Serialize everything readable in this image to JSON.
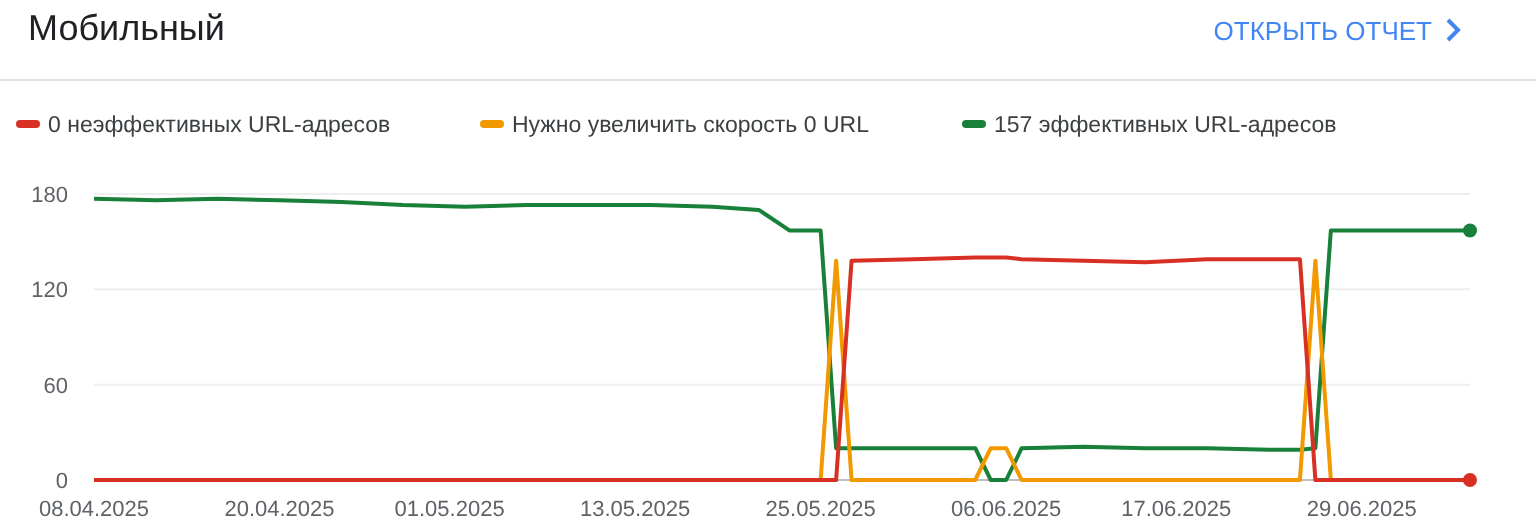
{
  "chart_data": {
    "type": "line",
    "title": "Мобильный",
    "annotations": [
      "ОТКРЫТЬ ОТЧЕТ"
    ],
    "x": [
      "2025-04-08",
      "2025-04-12",
      "2025-04-16",
      "2025-04-20",
      "2025-04-24",
      "2025-04-28",
      "2025-05-02",
      "2025-05-06",
      "2025-05-10",
      "2025-05-14",
      "2025-05-18",
      "2025-05-21",
      "2025-05-23",
      "2025-05-25",
      "2025-05-26",
      "2025-05-27",
      "2025-05-31",
      "2025-06-04",
      "2025-06-05",
      "2025-06-06",
      "2025-06-07",
      "2025-06-11",
      "2025-06-15",
      "2025-06-19",
      "2025-06-23",
      "2025-06-25",
      "2025-06-26",
      "2025-06-27",
      "2025-07-01",
      "2025-07-06"
    ],
    "series": [
      {
        "name": "0 неэффективных URL-адресов",
        "color": "#d93025",
        "values": [
          0,
          0,
          0,
          0,
          0,
          0,
          0,
          0,
          0,
          0,
          0,
          0,
          0,
          0,
          0,
          138,
          139,
          140,
          140,
          140,
          139,
          138,
          137,
          139,
          139,
          139,
          0,
          0,
          0,
          0
        ]
      },
      {
        "name": "Нужно увеличить скорость 0 URL",
        "color": "#f29900",
        "values": [
          null,
          null,
          null,
          null,
          null,
          null,
          null,
          null,
          null,
          null,
          null,
          null,
          null,
          0,
          138,
          0,
          0,
          0,
          20,
          20,
          0,
          0,
          0,
          0,
          0,
          0,
          138,
          0,
          null,
          null
        ]
      },
      {
        "name": "157 эффективных URL-адресов",
        "color": "#188038",
        "values": [
          177,
          176,
          177,
          176,
          175,
          173,
          172,
          173,
          173,
          173,
          172,
          170,
          157,
          157,
          20,
          20,
          20,
          20,
          0,
          0,
          20,
          21,
          20,
          20,
          19,
          19,
          20,
          157,
          157,
          157
        ]
      }
    ],
    "xlim": [
      "2025-04-08",
      "2025-07-06"
    ],
    "xticks": [
      {
        "value": "2025-04-08",
        "label": "08.04.2025"
      },
      {
        "value": "2025-04-20",
        "label": "20.04.2025"
      },
      {
        "value": "2025-05-01",
        "label": "01.05.2025"
      },
      {
        "value": "2025-05-13",
        "label": "13.05.2025"
      },
      {
        "value": "2025-05-25",
        "label": "25.05.2025"
      },
      {
        "value": "2025-06-06",
        "label": "06.06.2025"
      },
      {
        "value": "2025-06-17",
        "label": "17.06.2025"
      },
      {
        "value": "2025-06-29",
        "label": "29.06.2025"
      }
    ],
    "ylim": [
      0,
      180
    ],
    "yticks": [
      0,
      60,
      120,
      180
    ],
    "grid": "y",
    "legend": "top left"
  }
}
